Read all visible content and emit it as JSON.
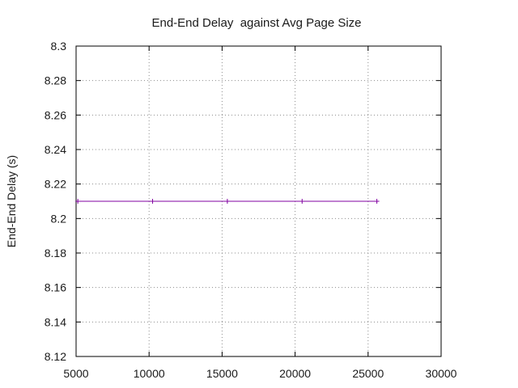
{
  "chart_data": {
    "type": "line",
    "title": "End-End Delay  against Avg Page Size",
    "xlabel": "",
    "ylabel": "End-End Delay (s)",
    "xlim": [
      5000,
      30000
    ],
    "ylim": [
      8.12,
      8.3
    ],
    "x_ticks": [
      "5000",
      "10000",
      "15000",
      "20000",
      "25000",
      "30000"
    ],
    "y_ticks": [
      "8.12",
      "8.14",
      "8.16",
      "8.18",
      "8.2",
      "8.22",
      "8.24",
      "8.26",
      "8.28",
      "8.3"
    ],
    "grid": true,
    "series": [
      {
        "color": "#8000a0",
        "marker": "plus",
        "x": [
          5120,
          10240,
          15360,
          20480,
          25600
        ],
        "y": [
          8.21,
          8.21,
          8.21,
          8.21,
          8.21
        ]
      }
    ]
  }
}
